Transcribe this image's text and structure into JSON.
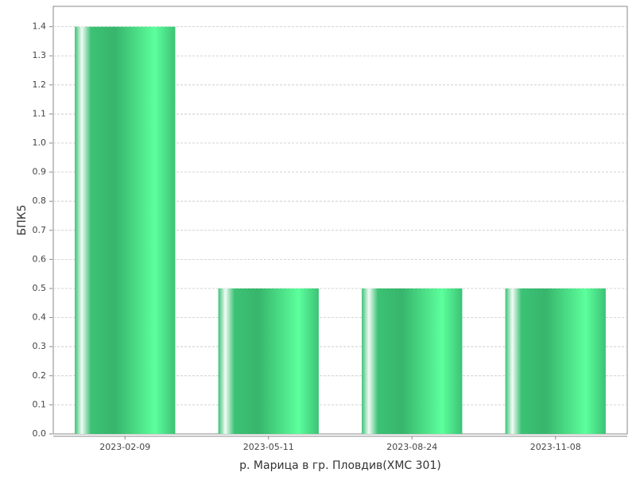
{
  "chart_data": {
    "type": "bar",
    "x_label": "р. Марица в гр. Пловдив(ХМС 301)",
    "y_label": "БПК5",
    "categories": [
      "2023-02-09",
      "2023-05-11",
      "2023-08-24",
      "2023-11-08"
    ],
    "values": [
      1.4,
      0.5,
      0.5,
      0.5
    ],
    "color": "#3cc275",
    "ylim": [
      0,
      1.47
    ],
    "yticks": [
      {
        "value": 0,
        "label": "0.0"
      },
      0.1,
      0.2,
      0.3,
      0.4,
      0.5,
      0.6,
      0.7,
      0.8,
      0.9,
      {
        "value": 1,
        "label": "1.0"
      },
      1.1,
      1.2,
      1.3,
      1.4
    ],
    "grid": true
  }
}
